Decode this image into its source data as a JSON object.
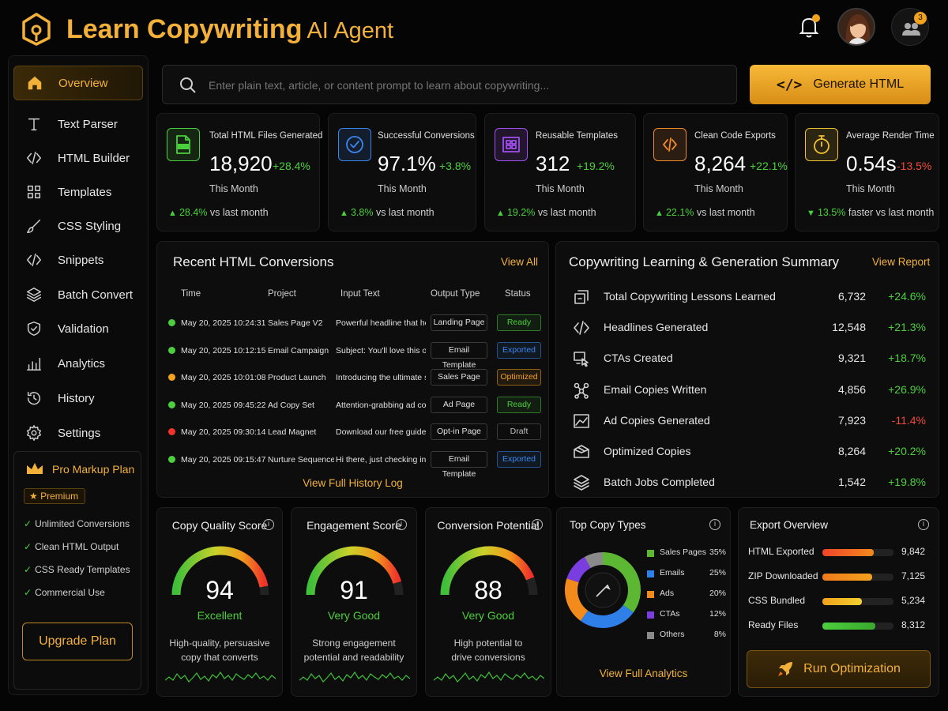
{
  "header": {
    "title_bold": "Learn Copywriting",
    "title_light": "AI Agent",
    "notifications_badge": "",
    "team_badge": "3"
  },
  "sidebar": {
    "items": [
      {
        "label": "Overview",
        "icon": "home-icon",
        "active": true
      },
      {
        "label": "Text Parser",
        "icon": "text-icon"
      },
      {
        "label": "HTML Builder",
        "icon": "code-icon"
      },
      {
        "label": "Templates",
        "icon": "grid-icon"
      },
      {
        "label": "CSS Styling",
        "icon": "brush-icon"
      },
      {
        "label": "Snippets",
        "icon": "code-icon"
      },
      {
        "label": "Batch Convert",
        "icon": "layers-icon"
      },
      {
        "label": "Validation",
        "icon": "shield-check-icon"
      },
      {
        "label": "Analytics",
        "icon": "bar-chart-icon"
      },
      {
        "label": "History",
        "icon": "history-icon"
      },
      {
        "label": "Settings",
        "icon": "gear-icon"
      }
    ],
    "plan": {
      "title": "Pro Markup Plan",
      "badge": "Premium",
      "features": [
        "Unlimited Conversions",
        "Clean HTML Output",
        "CSS Ready Templates",
        "Commercial Use"
      ],
      "upgrade_label": "Upgrade Plan"
    }
  },
  "search": {
    "placeholder": "Enter plain text, article, or content prompt to learn about copywriting...",
    "button_label": "Generate HTML"
  },
  "stats": [
    {
      "label": "Total HTML Files Generated",
      "value": "18,920",
      "delta": "+28.4%",
      "period": "This Month",
      "foot_pct": "28.4%",
      "foot_text": "vs last month",
      "direction": "up",
      "color": "#4ccf3d"
    },
    {
      "label": "Successful Conversions",
      "value": "97.1%",
      "delta": "+3.8%",
      "period": "This Month",
      "foot_pct": "3.8%",
      "foot_text": "vs last month",
      "direction": "up",
      "color": "#3a86f0"
    },
    {
      "label": "Reusable Templates",
      "value": "312",
      "delta": "+19.2%",
      "period": "This Month",
      "foot_pct": "19.2%",
      "foot_text": "vs last month",
      "direction": "up",
      "color": "#a24ff0"
    },
    {
      "label": "Clean Code Exports",
      "value": "8,264",
      "delta": "+22.1%",
      "period": "This Month",
      "foot_pct": "22.1%",
      "foot_text": "vs last month",
      "direction": "up",
      "color": "#f0892a"
    },
    {
      "label": "Average Render Time",
      "value": "0.54s",
      "delta": "-13.5%",
      "period": "This Month",
      "foot_pct": "13.5%",
      "foot_text": "faster vs last month",
      "direction": "down",
      "color": "#f2c230"
    }
  ],
  "conversions": {
    "title": "Recent HTML Conversions",
    "view_all": "View All",
    "columns": [
      "Time",
      "Project",
      "Input Text",
      "Output Type",
      "Status"
    ],
    "rows": [
      {
        "time": "May 20, 2025 10:24:31",
        "project": "Sales Page V2",
        "input": "Powerful headline that hooks...",
        "output": "Landing Page",
        "status": "Ready",
        "dot": "#4ccf3d",
        "status_color": "#4ccf3d"
      },
      {
        "time": "May 20, 2025 10:12:15",
        "project": "Email Campaign",
        "input": "Subject: You'll love this offer...",
        "output": "Email Template",
        "status": "Exported",
        "dot": "#4ccf3d",
        "status_color": "#3a86f0"
      },
      {
        "time": "May 20, 2025 10:01:08",
        "project": "Product Launch",
        "input": "Introducing the ultimate sol...",
        "output": "Sales Page",
        "status": "Optimized",
        "dot": "#f2a21c",
        "status_color": "#f2a21c"
      },
      {
        "time": "May 20, 2025 09:45:22",
        "project": "Ad Copy Set",
        "input": "Attention-grabbing ad copy...",
        "output": "Ad Page",
        "status": "Ready",
        "dot": "#4ccf3d",
        "status_color": "#4ccf3d"
      },
      {
        "time": "May 20, 2025 09:30:14",
        "project": "Lead Magnet",
        "input": "Download our free guide to...",
        "output": "Opt-in Page",
        "status": "Draft",
        "dot": "#f0342a",
        "status_color": "#bfbfbf"
      },
      {
        "time": "May 20, 2025 09:15:47",
        "project": "Nurture Sequence",
        "input": "Hi there, just checking in...",
        "output": "Email Template",
        "status": "Exported",
        "dot": "#4ccf3d",
        "status_color": "#3a86f0"
      }
    ],
    "footer_link": "View Full History Log"
  },
  "summary": {
    "title": "Copywriting Learning & Generation Summary",
    "link": "View Report",
    "rows": [
      {
        "label": "Total Copywriting Lessons Learned",
        "value": "6,732",
        "pct": "+24.6%",
        "color": "#4ccf3d",
        "icon": "lesson-icon"
      },
      {
        "label": "Headlines Generated",
        "value": "12,548",
        "pct": "+21.3%",
        "color": "#4ccf3d",
        "icon": "code-icon"
      },
      {
        "label": "CTAs Created",
        "value": "9,321",
        "pct": "+18.7%",
        "color": "#4ccf3d",
        "icon": "cta-icon"
      },
      {
        "label": "Email Copies Written",
        "value": "4,856",
        "pct": "+26.9%",
        "color": "#4ccf3d",
        "icon": "network-icon"
      },
      {
        "label": "Ad Copies Generated",
        "value": "7,923",
        "pct": "-11.4%",
        "color": "#f04a3a",
        "icon": "chart-image-icon"
      },
      {
        "label": "Optimized Copies",
        "value": "8,264",
        "pct": "+20.2%",
        "color": "#4ccf3d",
        "icon": "box-icon"
      },
      {
        "label": "Batch Jobs Completed",
        "value": "1,542",
        "pct": "+19.8%",
        "color": "#4ccf3d",
        "icon": "layers-icon"
      }
    ]
  },
  "gauges": [
    {
      "title": "Copy Quality Score",
      "score": 94,
      "rating": "Excellent",
      "desc1": "High-quality, persuasive",
      "desc2": "copy that converts"
    },
    {
      "title": "Engagement Score",
      "score": 91,
      "rating": "Very Good",
      "desc1": "Strong engagement",
      "desc2": "potential and readability"
    },
    {
      "title": "Conversion Potential",
      "score": 88,
      "rating": "Very Good",
      "desc1": "High potential to",
      "desc2": "drive conversions"
    }
  ],
  "top_types": {
    "title": "Top Copy Types",
    "link": "View Full Analytics",
    "items": [
      {
        "name": "Sales Pages",
        "pct": "35%",
        "value": 35,
        "color": "#5cb833"
      },
      {
        "name": "Emails",
        "pct": "25%",
        "value": 25,
        "color": "#2f7fe8"
      },
      {
        "name": "Ads",
        "pct": "20%",
        "value": 20,
        "color": "#f28a1c"
      },
      {
        "name": "CTAs",
        "pct": "12%",
        "value": 12,
        "color": "#7a3de0"
      },
      {
        "name": "Others",
        "pct": "8%",
        "value": 8,
        "color": "#8a8a8a"
      }
    ]
  },
  "export": {
    "title": "Export Overview",
    "items": [
      {
        "name": "HTML Exported",
        "value": "9,842",
        "fill": 0.72,
        "color": "#f0442a",
        "color2": "#f28a1c"
      },
      {
        "name": "ZIP Downloaded",
        "value": "7,125",
        "fill": 0.7,
        "color": "#f27a1c",
        "color2": "#f2a21c"
      },
      {
        "name": "CSS Bundled",
        "value": "5,234",
        "fill": 0.55,
        "color": "#f2a21c",
        "color2": "#f2d030"
      },
      {
        "name": "Ready Files",
        "value": "8,312",
        "fill": 0.74,
        "color": "#4ccf3d",
        "color2": "#3aa82e"
      }
    ],
    "button_label": "Run Optimization"
  }
}
